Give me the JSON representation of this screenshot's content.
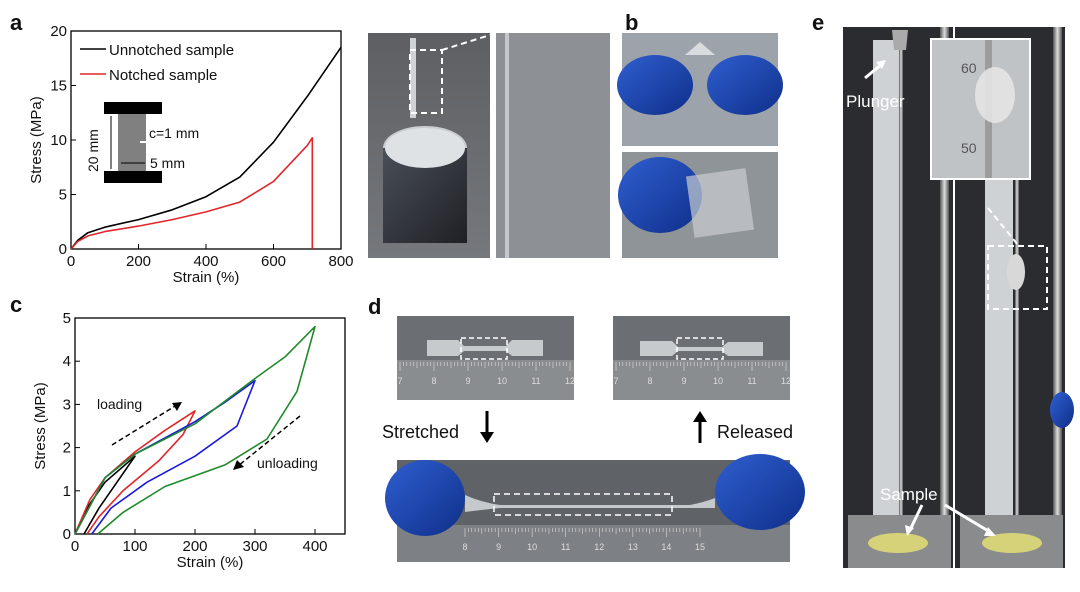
{
  "panels": {
    "a": {
      "label": "a"
    },
    "b": {
      "label": "b"
    },
    "c": {
      "label": "c"
    },
    "d": {
      "label": "d",
      "stretched": "Stretched",
      "released": "Released",
      "ruler_top": [
        "7",
        "8",
        "9",
        "10",
        "11",
        "12"
      ],
      "ruler_bottom": [
        "8",
        "9",
        "10",
        "11",
        "12",
        "13",
        "14",
        "15"
      ]
    },
    "e": {
      "label": "e",
      "plunger": "Plunger",
      "sample": "Sample",
      "inset_ticks": [
        "60",
        "50"
      ]
    }
  },
  "inset_a": {
    "length": "20 mm",
    "notch": "c=1 mm",
    "width": "5 mm"
  },
  "chart_data": [
    {
      "type": "line",
      "xlabel": "Strain (%)",
      "ylabel": "Stress (MPa)",
      "xlim": [
        0,
        800
      ],
      "ylim": [
        0,
        20
      ],
      "xticks": [
        "0",
        "200",
        "400",
        "600",
        "800"
      ],
      "yticks": [
        "0",
        "5",
        "10",
        "15",
        "20"
      ],
      "grid": false,
      "legend": "top-left",
      "series": [
        {
          "name": "Unnotched sample",
          "color": "#000000",
          "x": [
            0,
            20,
            50,
            100,
            200,
            300,
            400,
            500,
            600,
            700,
            800
          ],
          "y": [
            0,
            0.8,
            1.5,
            2.0,
            2.7,
            3.6,
            4.8,
            6.6,
            9.8,
            14.0,
            18.5
          ]
        },
        {
          "name": "Notched sample",
          "color": "#e0262a",
          "x": [
            0,
            20,
            50,
            100,
            200,
            300,
            400,
            500,
            600,
            700,
            715,
            715
          ],
          "y": [
            0,
            0.7,
            1.2,
            1.6,
            2.1,
            2.7,
            3.4,
            4.3,
            6.2,
            9.5,
            10.2,
            0
          ]
        }
      ]
    },
    {
      "type": "line",
      "xlabel": "Strain (%)",
      "ylabel": "Stress (MPa)",
      "xlim": [
        0,
        450
      ],
      "ylim": [
        0,
        5
      ],
      "xticks": [
        "0",
        "100",
        "200",
        "300",
        "400"
      ],
      "yticks": [
        "0",
        "1",
        "2",
        "3",
        "4",
        "5"
      ],
      "grid": false,
      "annotations": [
        "loading",
        "unloading"
      ],
      "series": [
        {
          "color": "#000000",
          "x": [
            0,
            20,
            50,
            100,
            70,
            40,
            15
          ],
          "y": [
            0,
            0.6,
            1.2,
            1.8,
            1.2,
            0.6,
            0
          ]
        },
        {
          "color": "#e0262a",
          "x": [
            0,
            25,
            50,
            100,
            150,
            200,
            180,
            140,
            80,
            40,
            20
          ],
          "y": [
            0,
            0.8,
            1.3,
            1.9,
            2.4,
            2.85,
            2.3,
            1.7,
            1.0,
            0.4,
            0
          ]
        },
        {
          "color": "#1a1adc",
          "x": [
            0,
            50,
            100,
            200,
            250,
            300,
            270,
            200,
            120,
            60,
            28
          ],
          "y": [
            0,
            1.3,
            1.85,
            2.6,
            3.05,
            3.55,
            2.5,
            1.8,
            1.2,
            0.6,
            0
          ]
        },
        {
          "color": "#1f8a2a",
          "x": [
            0,
            50,
            100,
            200,
            300,
            350,
            400,
            370,
            320,
            250,
            150,
            80,
            38
          ],
          "y": [
            0,
            1.3,
            1.85,
            2.55,
            3.6,
            4.1,
            4.8,
            3.3,
            2.2,
            1.6,
            1.1,
            0.5,
            0
          ]
        }
      ]
    }
  ]
}
